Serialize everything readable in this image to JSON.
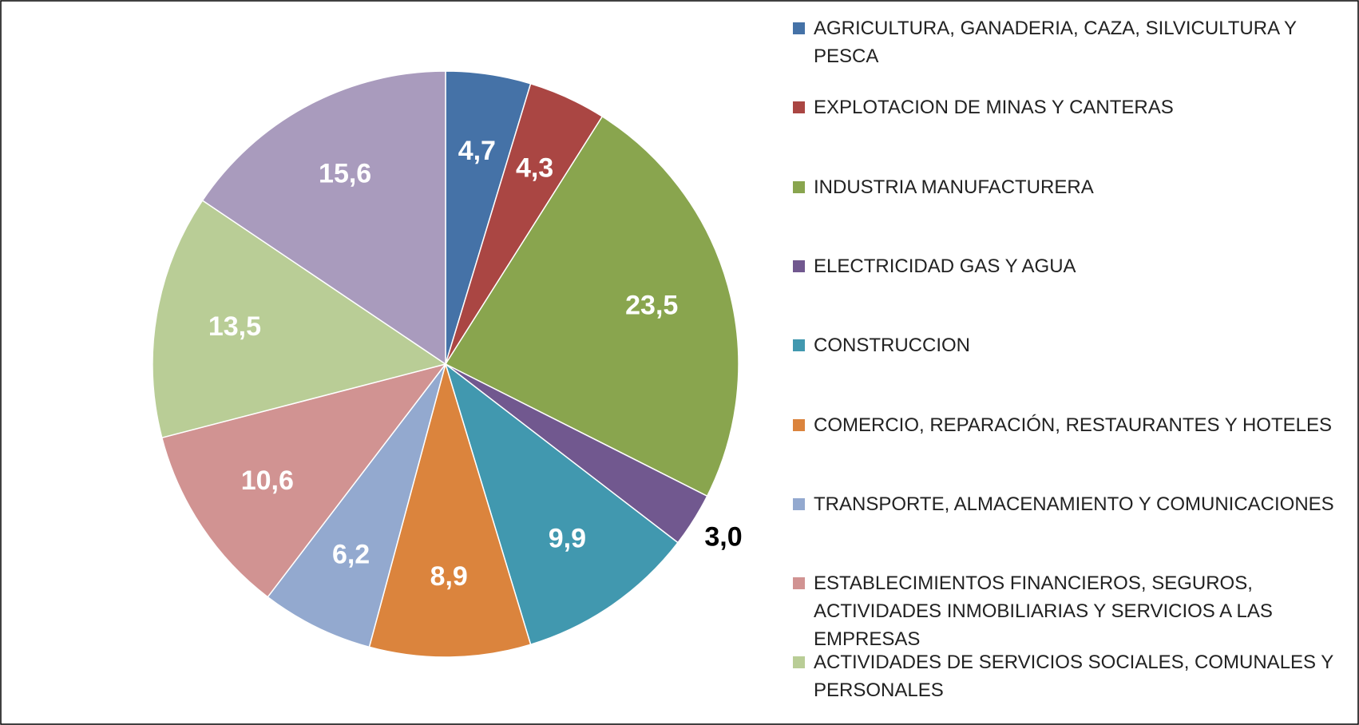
{
  "chart_data": {
    "type": "pie",
    "categories": [
      "AGRICULTURA, GANADERIA, CAZA, SILVICULTURA Y PESCA",
      "EXPLOTACION DE MINAS Y CANTERAS",
      "INDUSTRIA MANUFACTURERA",
      "ELECTRICIDAD GAS Y AGUA",
      "CONSTRUCCION",
      "COMERCIO, REPARACIÓN, RESTAURANTES Y HOTELES",
      "TRANSPORTE, ALMACENAMIENTO Y COMUNICACIONES",
      "ESTABLECIMIENTOS FINANCIEROS, SEGUROS, ACTIVIDADES INMOBILIARIAS Y SERVICIOS A LAS EMPRESAS",
      "ACTIVIDADES DE SERVICIOS SOCIALES, COMUNALES Y PERSONALES",
      null
    ],
    "values": [
      4.7,
      4.3,
      23.5,
      3.0,
      9.9,
      8.9,
      6.2,
      10.6,
      13.5,
      15.6
    ],
    "value_labels": [
      "4,7",
      "4,3",
      "23,5",
      "3,0",
      "9,9",
      "8,9",
      "6,2",
      "10,6",
      "13,5",
      "15,6"
    ],
    "colors": [
      "#4572a7",
      "#aa4643",
      "#89a54e",
      "#71588f",
      "#4198af",
      "#db843d",
      "#93a9cf",
      "#d19392",
      "#b9cd96",
      "#a99bbd"
    ],
    "legend": "right"
  }
}
